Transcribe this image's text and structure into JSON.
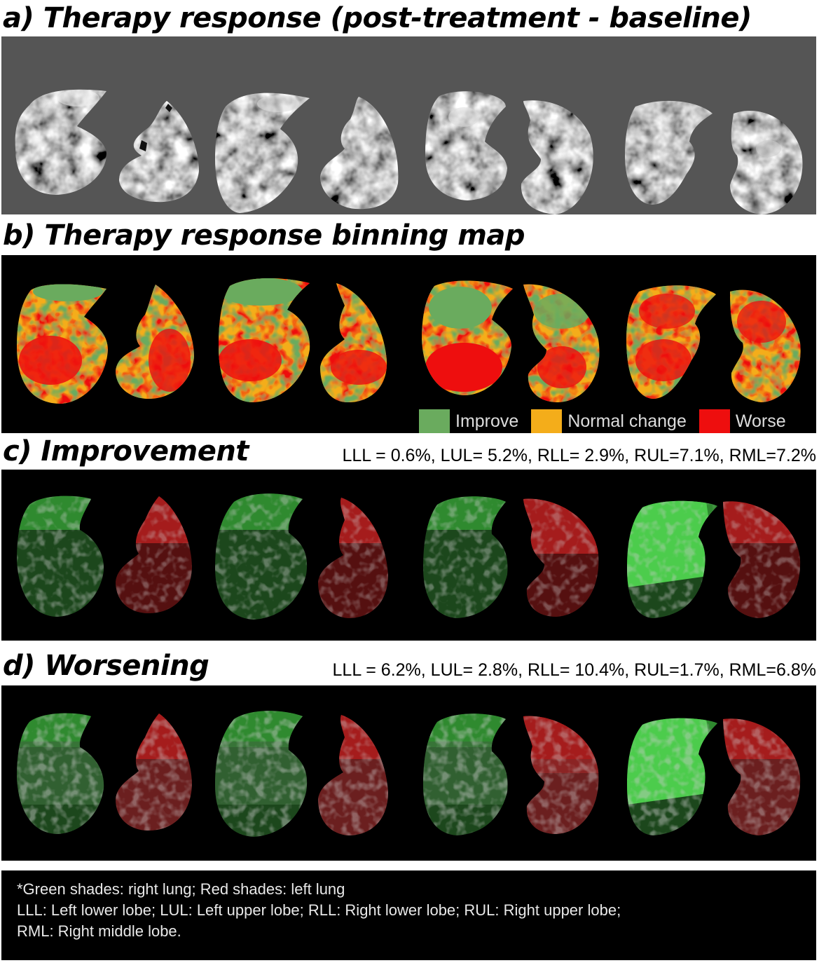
{
  "panels": {
    "a": {
      "title": "a) Therapy response (post-treatment - baseline)"
    },
    "b": {
      "title": "b) Therapy response binning map"
    },
    "c": {
      "title": "c) Improvement",
      "stats": "LLL = 0.6%, LUL= 5.2%, RLL= 2.9%, RUL=7.1%, RML=7.2%"
    },
    "d": {
      "title": "d) Worsening",
      "stats": "LLL = 6.2%, LUL= 2.8%, RLL= 10.4%, RUL=1.7%, RML=6.8%"
    }
  },
  "legend": [
    {
      "label": "Improve",
      "color": "#6aab5e"
    },
    {
      "label": "Normal change",
      "color": "#f4ad1a"
    },
    {
      "label": "Worse",
      "color": "#ee0e0e"
    }
  ],
  "footnote": {
    "line1": "*Green shades: right lung; Red shades: left lung",
    "line2": "LLL: Left lower lobe; LUL: Left upper lobe; RLL: Right lower lobe; RUL: Right upper lobe;",
    "line3": "RML: Right middle lobe."
  },
  "colors": {
    "ct_background": "#555555",
    "map_background": "#000000",
    "right_lung_shades": [
      "#1c471c",
      "#2f8a2f",
      "#4ccc4c"
    ],
    "left_lung_shades": [
      "#551010",
      "#a51c1c",
      "#d44040"
    ]
  }
}
